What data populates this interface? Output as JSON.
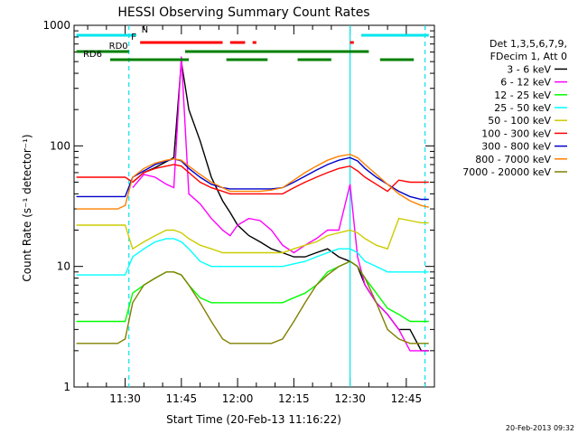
{
  "chart_data": {
    "type": "line",
    "title": "HESSI Observing Summary Count Rates",
    "xlabel": "Start Time (20-Feb-13 11:16:22)",
    "ylabel": "Count Rate (s⁻¹ detector⁻¹)",
    "y_scale": "log",
    "ylim": [
      1,
      1000
    ],
    "xlim": [
      "11:16:22",
      "12:52:30"
    ],
    "x_ticks": [
      "11:30",
      "11:45",
      "12:00",
      "12:15",
      "12:30",
      "12:45"
    ],
    "y_ticks": [
      "1",
      "10",
      "100",
      "1000"
    ],
    "legend": {
      "placement": "right",
      "header": [
        "Det 1,3,5,6,7,9,",
        "FDecim 1, Att 0"
      ]
    },
    "flag_bars": [
      {
        "label": "N",
        "color": "#00e5ee",
        "segments": [
          [
            "11:17",
            "11:33"
          ],
          [
            "12:33",
            "12:51"
          ]
        ]
      },
      {
        "label": "F",
        "color": "#ff0000",
        "segments": [
          [
            "11:34",
            "11:56"
          ],
          [
            "11:58",
            "12:02"
          ],
          [
            "12:04",
            "12:05"
          ],
          [
            "12:30",
            "12:31"
          ]
        ]
      },
      {
        "label": "RD0",
        "color": "#008000",
        "segments": [
          [
            "11:17",
            "11:31"
          ],
          [
            "11:46",
            "12:35"
          ]
        ]
      },
      {
        "label": "RD6",
        "color": "#008000",
        "segments": [
          [
            "11:26",
            "11:47"
          ],
          [
            "11:57",
            "12:08"
          ],
          [
            "12:16",
            "12:25"
          ],
          [
            "12:38",
            "12:47"
          ]
        ]
      }
    ],
    "markers": [
      {
        "color": "#00e5ee",
        "style": "dashed",
        "x": "11:31"
      },
      {
        "color": "#00e5ee",
        "style": "dashed",
        "x": "12:50"
      },
      {
        "color": "#00e5ee",
        "style": "solid",
        "x": "12:30"
      }
    ],
    "x": [
      "11:17",
      "11:20",
      "11:25",
      "11:28",
      "11:30",
      "11:32",
      "11:35",
      "11:38",
      "11:41",
      "11:43",
      "11:45",
      "11:47",
      "11:50",
      "11:53",
      "11:56",
      "11:58",
      "12:00",
      "12:03",
      "12:06",
      "12:09",
      "12:12",
      "12:15",
      "12:18",
      "12:21",
      "12:24",
      "12:27",
      "12:30",
      "12:32",
      "12:34",
      "12:37",
      "12:40",
      "12:43",
      "12:46",
      "12:49",
      "12:51"
    ],
    "series": [
      {
        "name": "3 - 6 keV",
        "color": "#000000",
        "values": [
          null,
          null,
          null,
          null,
          null,
          50,
          60,
          66,
          74,
          80,
          500,
          200,
          110,
          55,
          35,
          28,
          22,
          18,
          16,
          14,
          13,
          12,
          12,
          13,
          14,
          12,
          11,
          10,
          7,
          5,
          4,
          3,
          3,
          2,
          2
        ]
      },
      {
        "name": "6 - 12 keV",
        "color": "#ff00ff",
        "values": [
          null,
          null,
          null,
          null,
          null,
          45,
          58,
          55,
          48,
          45,
          550,
          40,
          33,
          25,
          20,
          18,
          22,
          25,
          24,
          20,
          15,
          13,
          15,
          17,
          20,
          20,
          48,
          12,
          7,
          5,
          4,
          3,
          2,
          2,
          2
        ]
      },
      {
        "name": "12 - 25 keV",
        "color": "#00ff00",
        "values": [
          3.5,
          3.5,
          3.5,
          3.5,
          3.5,
          6,
          7,
          8,
          9,
          9,
          8.5,
          7,
          5.5,
          5,
          5,
          5,
          5,
          5,
          5,
          5,
          5,
          5.5,
          6,
          7,
          9,
          10,
          11,
          10,
          8,
          6,
          4.5,
          4,
          3.5,
          3.5,
          3.5
        ]
      },
      {
        "name": "25 - 50 keV",
        "color": "#00ffff",
        "values": [
          8.5,
          8.5,
          8.5,
          8.5,
          8.5,
          12,
          14,
          16,
          17,
          17,
          16,
          14,
          11,
          10,
          10,
          10,
          10,
          10,
          10,
          10,
          10,
          10.5,
          11,
          12,
          13,
          14,
          14,
          13,
          11,
          10,
          9,
          9,
          9,
          9,
          9
        ]
      },
      {
        "name": "50 - 100 keV",
        "color": "#cccc00",
        "values": [
          22,
          22,
          22,
          22,
          22,
          14,
          16,
          18,
          20,
          20,
          19,
          17,
          15,
          14,
          13,
          13,
          13,
          13,
          13,
          13,
          13,
          14,
          15,
          16,
          18,
          19,
          20,
          19,
          17,
          15,
          14,
          25,
          24,
          23,
          23
        ]
      },
      {
        "name": "100 - 300 keV",
        "color": "#ff0000",
        "values": [
          55,
          55,
          55,
          55,
          55,
          50,
          60,
          65,
          68,
          70,
          68,
          60,
          50,
          45,
          42,
          40,
          40,
          40,
          40,
          40,
          40,
          45,
          50,
          55,
          60,
          65,
          68,
          62,
          55,
          48,
          42,
          52,
          50,
          50,
          50
        ]
      },
      {
        "name": "300 - 800 keV",
        "color": "#0000cc",
        "values": [
          38,
          38,
          38,
          38,
          38,
          55,
          62,
          70,
          75,
          78,
          75,
          65,
          55,
          48,
          45,
          44,
          44,
          44,
          44,
          44,
          45,
          50,
          56,
          63,
          70,
          76,
          80,
          75,
          65,
          55,
          48,
          42,
          38,
          36,
          36
        ]
      },
      {
        "name": "800 - 7000 keV",
        "color": "#ff8000",
        "values": [
          30,
          30,
          30,
          30,
          32,
          55,
          65,
          72,
          76,
          78,
          76,
          68,
          58,
          50,
          45,
          42,
          42,
          42,
          42,
          43,
          45,
          52,
          60,
          68,
          76,
          82,
          85,
          80,
          70,
          58,
          48,
          40,
          35,
          32,
          31
        ]
      },
      {
        "name": "7000 - 20000 keV",
        "color": "#808000",
        "values": [
          2.3,
          2.3,
          2.3,
          2.3,
          2.5,
          5,
          7,
          8,
          9,
          9,
          8.5,
          7,
          5,
          3.5,
          2.5,
          2.3,
          2.3,
          2.3,
          2.3,
          2.3,
          2.5,
          3.5,
          5,
          7,
          8.5,
          10,
          11,
          10,
          8,
          5,
          3,
          2.5,
          2.3,
          2.3,
          2.3
        ]
      }
    ]
  },
  "footer_timestamp": "20-Feb-2013 09:32"
}
